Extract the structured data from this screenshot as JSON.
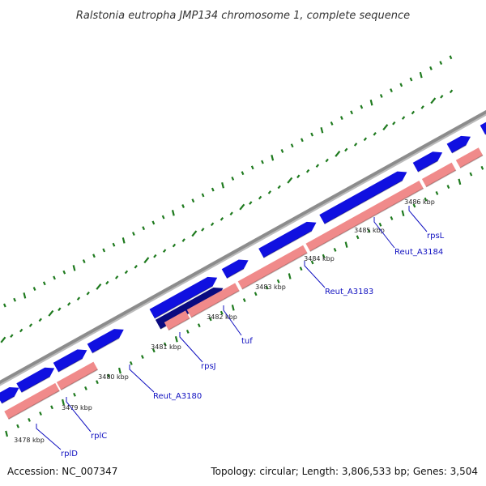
{
  "title": "Ralstonia eutropha JMP134 chromosome 1, complete sequence",
  "accession": "Accession: NC_007347",
  "summary": "Topology: circular; Length: 3,806,533 bp; Genes: 3,504",
  "colors": {
    "backbone": "#8c8c8c",
    "forward_gene": "#1010e0",
    "forward_gene_alt": "#0a0a80",
    "reverse_gene": "#f08a8a",
    "reverse_gene_alt": "#ee1493",
    "tick": "#1e7a1e",
    "label": "#1010c0",
    "leader": "#1010c0"
  },
  "ticks": [
    {
      "label": "3478 kbp"
    },
    {
      "label": "3479 kbp"
    },
    {
      "label": "3480 kbp"
    },
    {
      "label": "3481 kbp"
    },
    {
      "label": "3482 kbp"
    },
    {
      "label": "3483 kbp"
    },
    {
      "label": "3484 kbp"
    },
    {
      "label": "3485 kbp"
    },
    {
      "label": "3486 kbp"
    }
  ],
  "genes": [
    {
      "name": "rplD"
    },
    {
      "name": "rplC"
    },
    {
      "name": "Reut_A3180"
    },
    {
      "name": "rpsJ"
    },
    {
      "name": "tuf"
    },
    {
      "name": "Reut_A3183"
    },
    {
      "name": "Reut_A3184"
    },
    {
      "name": "rpsL"
    }
  ]
}
